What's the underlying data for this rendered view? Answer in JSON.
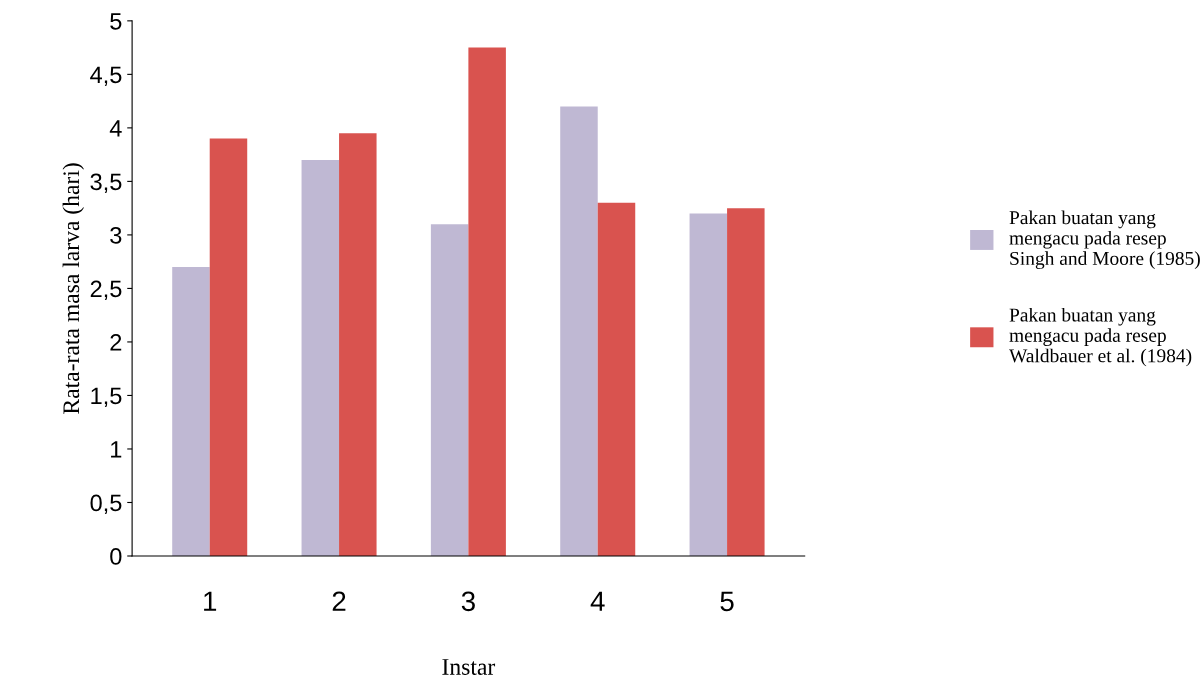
{
  "chart_data": {
    "type": "bar",
    "xlabel": "Instar",
    "ylabel": "Rata-rata masa larva (hari)",
    "categories": [
      "1",
      "2",
      "3",
      "4",
      "5"
    ],
    "series": [
      {
        "name": "Pakan buatan yang\nmengacu pada resep\nSingh and Moore (1985)",
        "color": "#bfb8d3",
        "values": [
          2.7,
          3.7,
          3.1,
          4.2,
          3.2
        ]
      },
      {
        "name": "Pakan buatan yang\nmengacu pada resep\nWaldbauer et al. (1984)",
        "color": "#d9534f",
        "values": [
          3.9,
          3.95,
          4.75,
          3.3,
          3.25
        ]
      }
    ],
    "ylim": [
      0,
      5
    ],
    "yticks": [
      0,
      {
        "value": 0.5,
        "label": "0,5"
      },
      1,
      {
        "value": 1.5,
        "label": "1,5"
      },
      2,
      {
        "value": 2.5,
        "label": "2,5"
      },
      3,
      {
        "value": 3.5,
        "label": "3,5"
      },
      4,
      {
        "value": 4.5,
        "label": "4,5"
      },
      5
    ],
    "grid": false,
    "legend": "right"
  }
}
